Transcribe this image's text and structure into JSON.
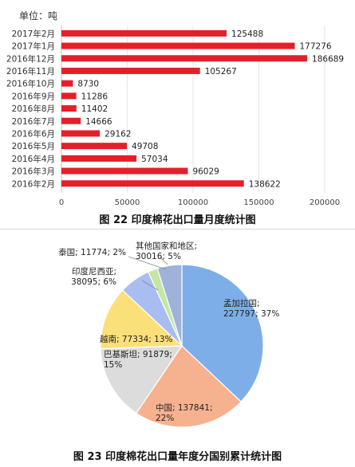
{
  "chart_data": [
    {
      "type": "bar",
      "orientation": "horizontal",
      "unit_label": "单位：吨",
      "caption": "图 22  印度棉花出口量月度统计图",
      "categories": [
        "2017年2月",
        "2017年1月",
        "2016年12月",
        "2016年11月",
        "2016年10月",
        "2016年9月",
        "2016年8月",
        "2016年7月",
        "2016年6月",
        "2016年5月",
        "2016年4月",
        "2016年3月",
        "2016年2月"
      ],
      "values": [
        125488,
        177276,
        186689,
        105267,
        8730,
        11286,
        11402,
        14666,
        29162,
        49708,
        57034,
        96029,
        138622
      ],
      "value_labels": [
        "125488",
        "177276",
        "186689",
        "105267",
        "8730",
        "11286",
        "11402",
        "14666",
        "29162",
        "49708",
        "57034",
        "96029",
        "138622"
      ],
      "xlim": [
        0,
        200000
      ],
      "xticks": [
        "0",
        "50000",
        "100000",
        "150000",
        "200000"
      ],
      "bar_color": "#e3202a",
      "grid": true
    },
    {
      "type": "pie",
      "caption": "图 23  印度棉花出口量年度分国别累计统计图",
      "slices": [
        {
          "label": "孟加拉国",
          "value": 227797,
          "pct": "37%",
          "text": "孟加拉国;|227797; 37%",
          "color": "#7eaee8"
        },
        {
          "label": "中国",
          "value": 137841,
          "pct": "22%",
          "text": "中国; 137841;|22%",
          "color": "#f6b18f"
        },
        {
          "label": "巴基斯坦",
          "value": 91879,
          "pct": "15%",
          "text": "巴基斯坦; 91879;|15%",
          "color": "#dcdcdc"
        },
        {
          "label": "越南",
          "value": 77334,
          "pct": "13%",
          "text": "越南; 77334; 13%",
          "color": "#fbe07a"
        },
        {
          "label": "印度尼西亚",
          "value": 38095,
          "pct": "6%",
          "text": "印度尼西亚;|38095; 6%",
          "color": "#a9bdf0"
        },
        {
          "label": "泰国",
          "value": 11774,
          "pct": "2%",
          "text": "泰国; 11774; 2%",
          "color": "#c6e6a6"
        },
        {
          "label": "其他国家和地区",
          "value": 30016,
          "pct": "5%",
          "text": "其他国家和地区;|30016; 5%",
          "color": "#9fb2d9"
        }
      ]
    }
  ]
}
